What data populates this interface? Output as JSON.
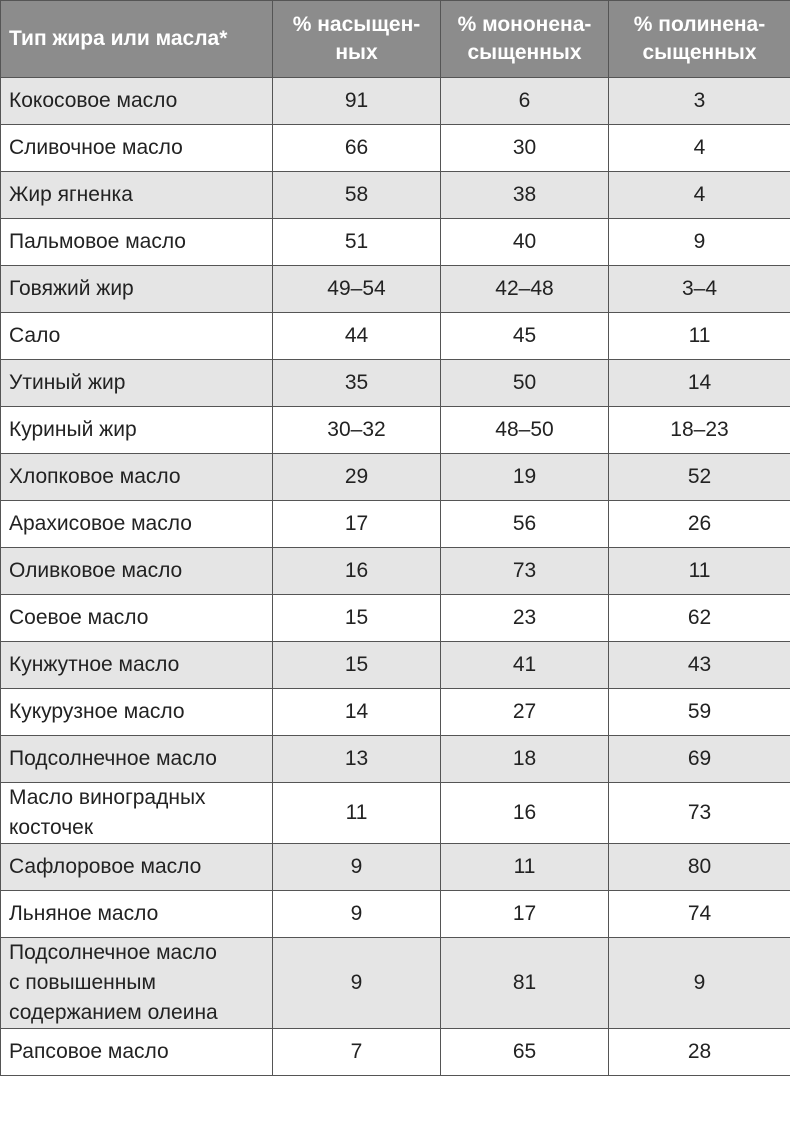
{
  "table": {
    "headers": [
      "Тип жира или масла*",
      "% насыщен-\nных",
      "% мононена-\nсыщенных",
      "% полинена-\nсыщенных"
    ],
    "rows": [
      [
        "Кокосовое масло",
        "91",
        "6",
        "3"
      ],
      [
        "Сливочное масло",
        "66",
        "30",
        "4"
      ],
      [
        "Жир ягненка",
        "58",
        "38",
        "4"
      ],
      [
        "Пальмовое масло",
        "51",
        "40",
        "9"
      ],
      [
        "Говяжий жир",
        "49–54",
        "42–48",
        "3–4"
      ],
      [
        "Сало",
        "44",
        "45",
        "11"
      ],
      [
        "Утиный жир",
        "35",
        "50",
        "14"
      ],
      [
        "Куриный жир",
        "30–32",
        "48–50",
        "18–23"
      ],
      [
        "Хлопковое масло",
        "29",
        "19",
        "52"
      ],
      [
        "Арахисовое масло",
        "17",
        "56",
        "26"
      ],
      [
        "Оливковое масло",
        "16",
        "73",
        "11"
      ],
      [
        "Соевое масло",
        "15",
        "23",
        "62"
      ],
      [
        "Кунжутное масло",
        "15",
        "41",
        "43"
      ],
      [
        "Кукурузное масло",
        "14",
        "27",
        "59"
      ],
      [
        "Подсолнечное масло",
        "13",
        "18",
        "69"
      ],
      [
        "Масло виноградных\nкосточек",
        "11",
        "16",
        "73"
      ],
      [
        "Сафлоровое масло",
        "9",
        "11",
        "80"
      ],
      [
        "Льняное масло",
        "9",
        "17",
        "74"
      ],
      [
        "Подсолнечное масло\nс повышенным\nсодержанием олеина",
        "9",
        "81",
        "9"
      ],
      [
        "Рапсовое масло",
        "7",
        "65",
        "28"
      ]
    ]
  },
  "colors": {
    "header_bg": "#8c8c8c",
    "row_alt_bg": "#e5e5e5",
    "border": "#555555"
  }
}
